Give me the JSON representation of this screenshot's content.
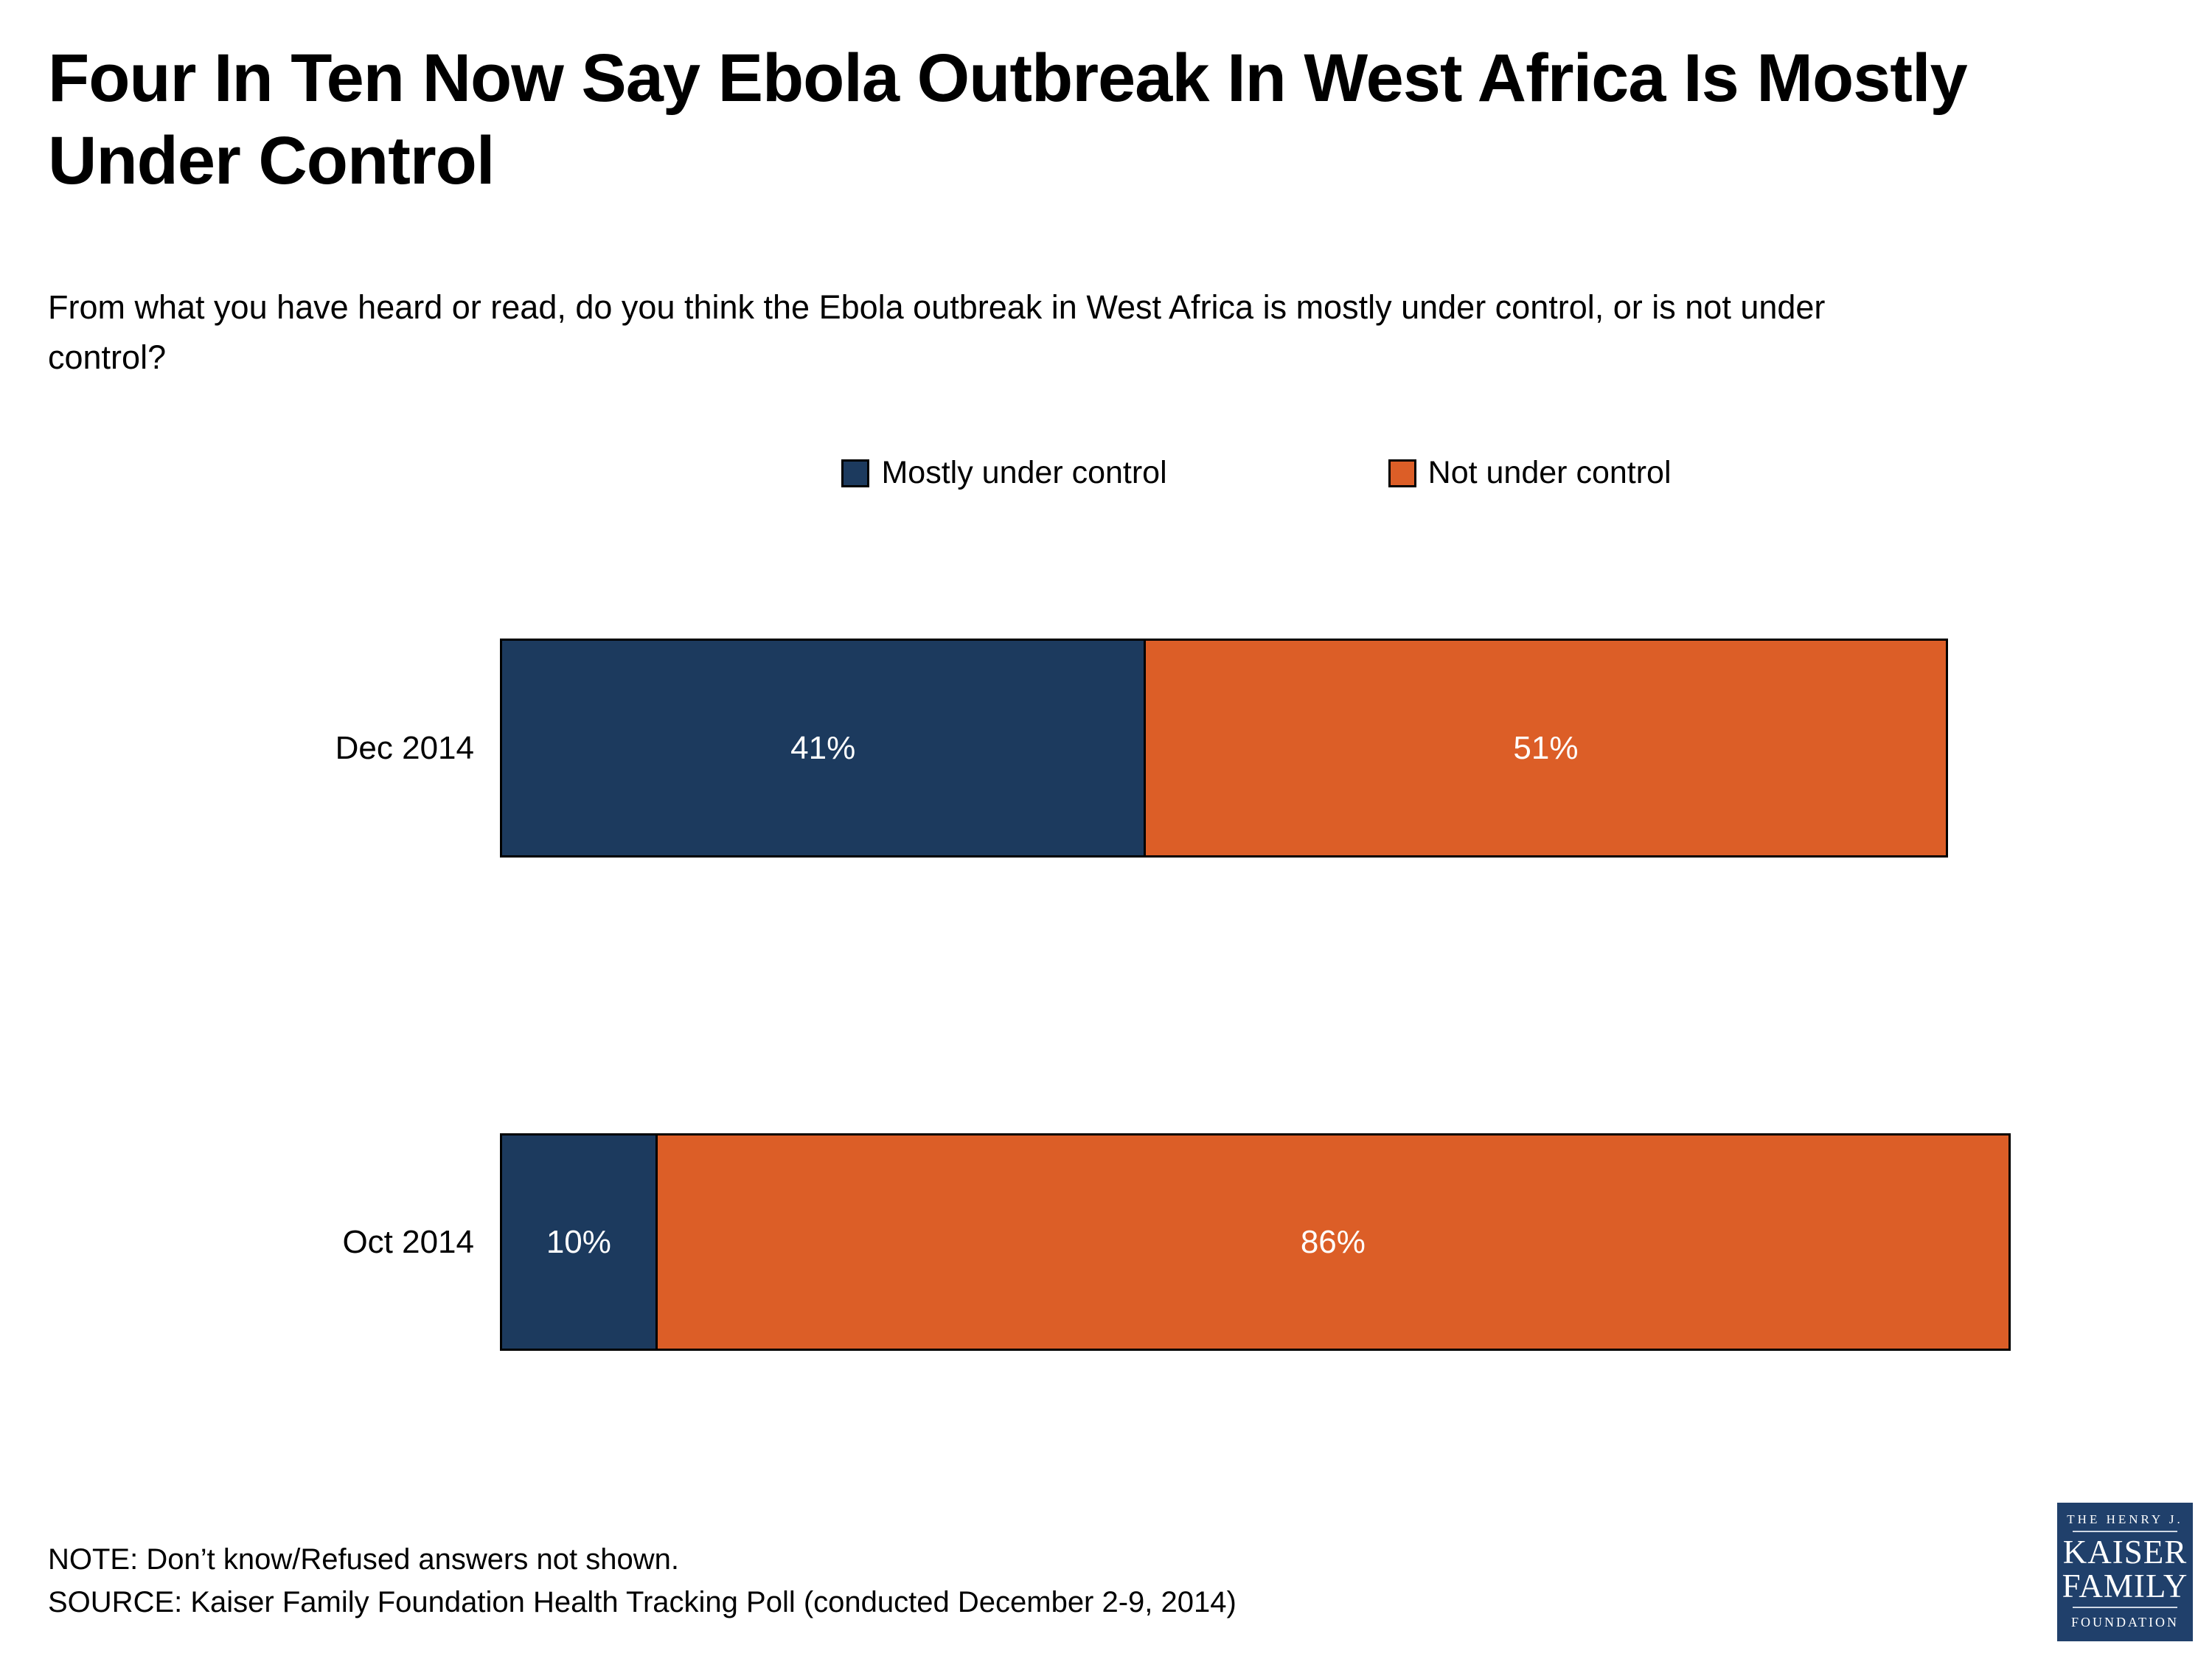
{
  "title": {
    "line1": "Four In Ten Now Say Ebola Outbreak In West Africa Is Mostly",
    "line2": "Under Control"
  },
  "question": {
    "line1": "From what you have heard or read, do you think the Ebola outbreak in West Africa is mostly under control, or is not under",
    "line2": "control?"
  },
  "legend": {
    "items": [
      {
        "label": "Mostly under control",
        "color": "#1C3A5E"
      },
      {
        "label": "Not under control",
        "color": "#DC5E27"
      }
    ]
  },
  "chart_data": {
    "type": "bar",
    "orientation": "horizontal-stacked",
    "categories": [
      "Dec 2014",
      "Oct 2014"
    ],
    "series": [
      {
        "name": "Mostly under control",
        "color": "#1C3A5E",
        "values": [
          41,
          10
        ]
      },
      {
        "name": "Not under control",
        "color": "#DC5E27",
        "values": [
          51,
          86
        ]
      }
    ],
    "value_labels": [
      [
        "41%",
        "51%"
      ],
      [
        "10%",
        "86%"
      ]
    ],
    "xlim": [
      0,
      96
    ],
    "unit": "%",
    "grid": false,
    "legend_position": "top-center",
    "bar_border_color": "#000000",
    "label_color": "#ffffff"
  },
  "footnotes": {
    "note": "NOTE: Don’t know/Refused answers not shown.",
    "source": "SOURCE: Kaiser Family Foundation Health Tracking Poll (conducted December 2-9, 2014)"
  },
  "logo": {
    "line1": "THE HENRY J.",
    "line2": "KAISER",
    "line3": "FAMILY",
    "line4": "FOUNDATION",
    "background": "#20406B"
  }
}
